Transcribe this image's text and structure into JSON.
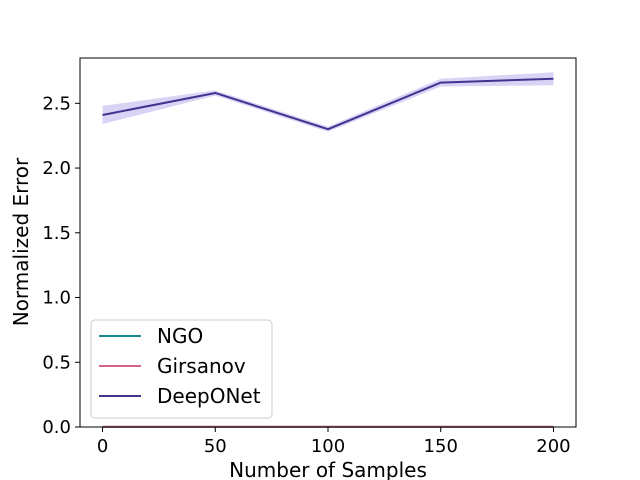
{
  "chart_data": {
    "type": "line",
    "title": "",
    "xlabel": "Number of Samples",
    "ylabel": "Normalized Error",
    "xlim": [
      -10,
      210
    ],
    "ylim": [
      0.0,
      2.85
    ],
    "xticks": [
      0,
      50,
      100,
      150,
      200
    ],
    "xtick_labels": [
      "0",
      "50",
      "100",
      "150",
      "200"
    ],
    "yticks": [
      0.0,
      0.5,
      1.0,
      1.5,
      2.0,
      2.5
    ],
    "ytick_labels": [
      "0.0",
      "0.5",
      "1.0",
      "1.5",
      "2.0",
      "2.5"
    ],
    "grid": false,
    "legend_position": "lower-left",
    "x": [
      0,
      50,
      100,
      150,
      200
    ],
    "series": [
      {
        "name": "NGO",
        "color": "#1a8a8a",
        "values": [
          0.001,
          0.001,
          0.001,
          0.001,
          0.001
        ],
        "band_low": [
          0.0,
          0.0,
          0.0,
          0.0,
          0.0
        ],
        "band_high": [
          0.003,
          0.003,
          0.003,
          0.003,
          0.003
        ]
      },
      {
        "name": "Girsanov",
        "color": "#d4638c",
        "values": [
          0.002,
          0.002,
          0.002,
          0.002,
          0.002
        ],
        "band_low": [
          0.0,
          0.0,
          0.0,
          0.0,
          0.0
        ],
        "band_high": [
          0.004,
          0.004,
          0.004,
          0.004,
          0.004
        ]
      },
      {
        "name": "DeepONet",
        "color": "#40348f",
        "band_color": "#b9b0ec",
        "values": [
          2.41,
          2.58,
          2.3,
          2.66,
          2.69
        ],
        "band_low": [
          2.34,
          2.56,
          2.28,
          2.63,
          2.64
        ],
        "band_high": [
          2.48,
          2.6,
          2.32,
          2.69,
          2.74
        ]
      }
    ]
  }
}
